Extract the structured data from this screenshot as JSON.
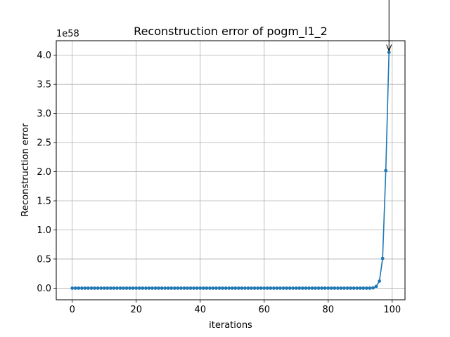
{
  "chart_data": {
    "type": "line",
    "title": "Reconstruction error of pogm_l1_2",
    "xlabel": "iterations",
    "ylabel": "Reconstruction error",
    "y_offset_text": "1e58",
    "xlim": [
      -5,
      104
    ],
    "ylim": [
      -0.2,
      4.25
    ],
    "xticks": [
      0,
      20,
      40,
      60,
      80,
      100
    ],
    "yticks": [
      0.0,
      0.5,
      1.0,
      1.5,
      2.0,
      2.5,
      3.0,
      3.5,
      4.0
    ],
    "ytick_labels": [
      "0.0",
      "0.5",
      "1.0",
      "1.5",
      "2.0",
      "2.5",
      "3.0",
      "3.5",
      "4.0"
    ],
    "grid": true,
    "color": "#1f77b4",
    "series": [
      {
        "x": [
          0,
          1,
          2,
          3,
          4,
          5,
          6,
          7,
          8,
          9,
          10,
          11,
          12,
          13,
          14,
          15,
          16,
          17,
          18,
          19,
          20,
          21,
          22,
          23,
          24,
          25,
          26,
          27,
          28,
          29,
          30,
          31,
          32,
          33,
          34,
          35,
          36,
          37,
          38,
          39,
          40,
          41,
          42,
          43,
          44,
          45,
          46,
          47,
          48,
          49,
          50,
          51,
          52,
          53,
          54,
          55,
          56,
          57,
          58,
          59,
          60,
          61,
          62,
          63,
          64,
          65,
          66,
          67,
          68,
          69,
          70,
          71,
          72,
          73,
          74,
          75,
          76,
          77,
          78,
          79,
          80,
          81,
          82,
          83,
          84,
          85,
          86,
          87,
          88,
          89,
          90,
          91,
          92,
          93,
          94,
          95,
          96,
          97,
          98,
          99
        ],
        "values": [
          0,
          0,
          0,
          0,
          0,
          0,
          0,
          0,
          0,
          0,
          0,
          0,
          0,
          0,
          0,
          0,
          0,
          0,
          0,
          0,
          0,
          0,
          0,
          0,
          0,
          0,
          0,
          0,
          0,
          0,
          0,
          0,
          0,
          0,
          0,
          0,
          0,
          0,
          0,
          0,
          0,
          0,
          0,
          0,
          0,
          0,
          0,
          0,
          0,
          0,
          0,
          0,
          0,
          0,
          0,
          0,
          0,
          0,
          0,
          0,
          0,
          0,
          0,
          0,
          0,
          0,
          0,
          0,
          0,
          0,
          0,
          0,
          0,
          0,
          0,
          0,
          0,
          0,
          0,
          0,
          0,
          0,
          0,
          0,
          0,
          0,
          0,
          0,
          0,
          0,
          0,
          0,
          0,
          0,
          0.004,
          0.03,
          0.12,
          0.51,
          2.02,
          4.05
        ]
      }
    ],
    "annotation": {
      "x": 99,
      "y": 4.05
    }
  }
}
